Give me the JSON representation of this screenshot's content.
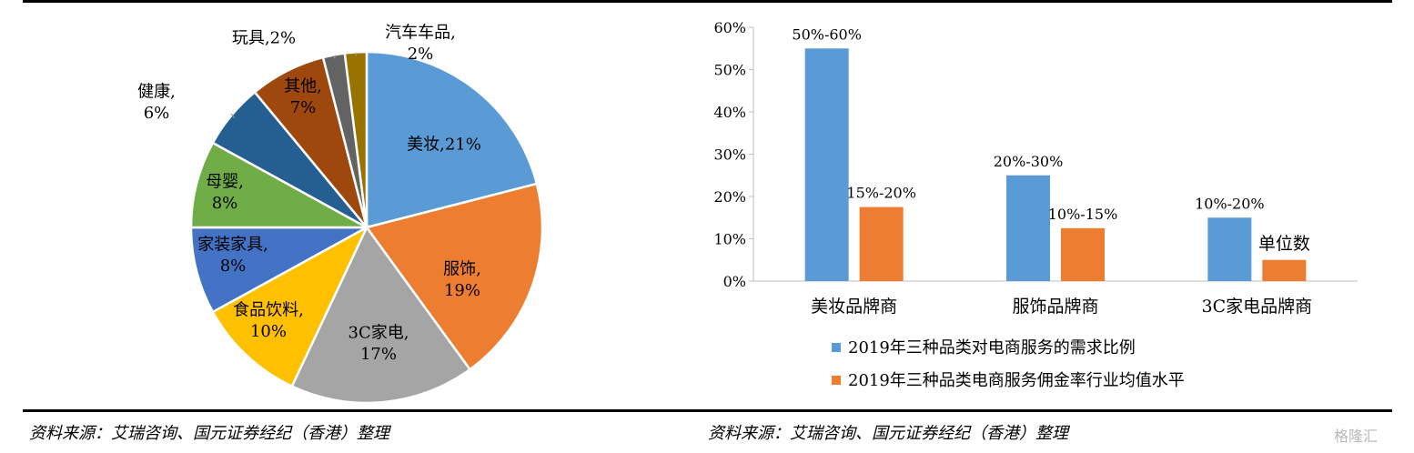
{
  "chart_data": [
    {
      "type": "pie",
      "slices": [
        {
          "name": "美妆",
          "label": "美妆,21%",
          "value": 21,
          "color": "#5b9bd5"
        },
        {
          "name": "服饰",
          "label": "服饰,\n19%",
          "value": 19,
          "color": "#ed7d31"
        },
        {
          "name": "3C家电",
          "label": "3C家电,\n17%",
          "value": 17,
          "color": "#a5a5a5"
        },
        {
          "name": "食品饮料",
          "label": "食品饮料,\n10%",
          "value": 10,
          "color": "#ffc000"
        },
        {
          "name": "家装家具",
          "label": "家装家具,\n8%",
          "value": 8,
          "color": "#4472c4"
        },
        {
          "name": "母婴",
          "label": "母婴,\n8%",
          "value": 8,
          "color": "#70ad47"
        },
        {
          "name": "健康",
          "label": "健康,\n6%",
          "value": 6,
          "color": "#255e91"
        },
        {
          "name": "其他",
          "label": "其他,\n7%",
          "value": 7,
          "color": "#9e480e"
        },
        {
          "name": "玩具",
          "label": "玩具,2%",
          "value": 2,
          "color": "#636363"
        },
        {
          "name": "汽车车品",
          "label": "汽车车品,\n2%",
          "value": 2,
          "color": "#997300"
        }
      ]
    },
    {
      "type": "bar",
      "categories": [
        "美妆品牌商",
        "服饰品牌商",
        "3C家电品牌商"
      ],
      "series": [
        {
          "name": "2019年三种品类对电商服务的需求比例",
          "values": [
            55,
            25,
            15
          ],
          "labels": [
            "50%-60%",
            "20%-30%",
            "10%-20%"
          ],
          "color": "#5b9bd5"
        },
        {
          "name": "2019年三种品类电商服务佣金率行业均值水平",
          "values": [
            17.5,
            12.5,
            5
          ],
          "labels": [
            "15%-20%",
            "10%-15%",
            "单位数"
          ],
          "color": "#ed7d31"
        }
      ],
      "ylim": [
        0,
        60
      ],
      "yticks": [
        "0%",
        "10%",
        "20%",
        "30%",
        "40%",
        "50%",
        "60%"
      ],
      "legend": "bottom"
    }
  ],
  "sources": {
    "left": "资料来源：艾瑞咨询、国元证券经纪（香港）整理",
    "right": "资料来源：艾瑞咨询、国元证券经纪（香港）整理"
  },
  "watermark": "格隆汇"
}
